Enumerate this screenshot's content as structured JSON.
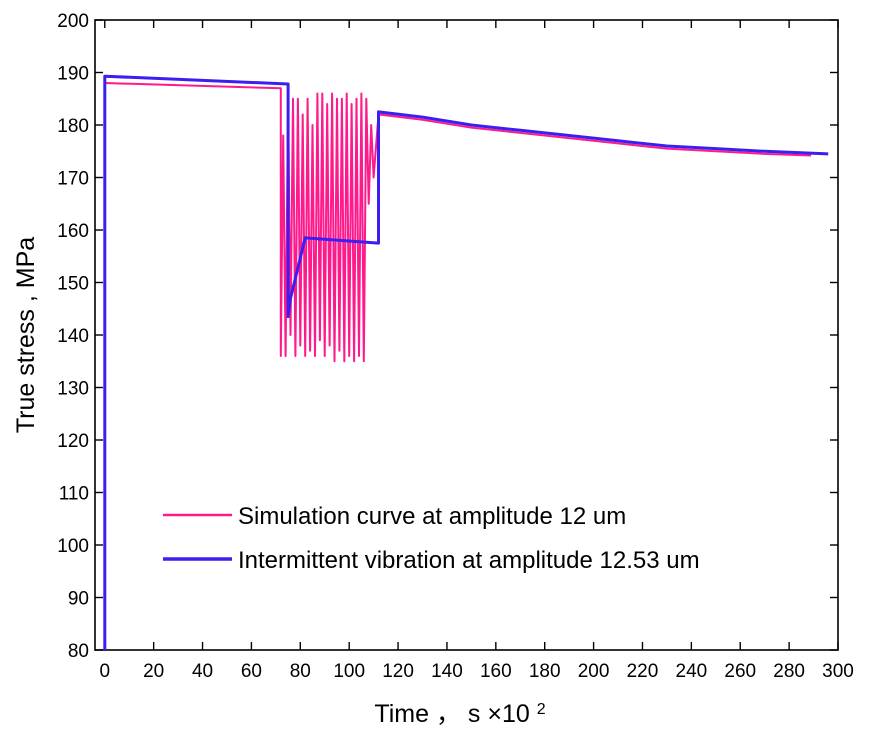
{
  "chart_data": {
    "type": "line",
    "xlabel": "Time",
    "xlabel_sep": "，",
    "xlabel_unit": "s ×10",
    "xlabel_exp": "2",
    "ylabel": "True stress , MPa",
    "xlim": [
      -4,
      300
    ],
    "ylim": [
      80,
      200
    ],
    "x_ticks": [
      0,
      20,
      40,
      60,
      80,
      100,
      120,
      140,
      160,
      180,
      200,
      220,
      240,
      260,
      280,
      300
    ],
    "y_ticks": [
      80,
      90,
      100,
      110,
      120,
      130,
      140,
      150,
      160,
      170,
      180,
      190,
      200
    ],
    "grid": false,
    "legend_position": "lower-center",
    "series": [
      {
        "name": "Simulation curve at amplitude 12 um",
        "color": "#ff1a8c",
        "points": [
          [
            0,
            80
          ],
          [
            0,
            188
          ],
          [
            72,
            187
          ],
          [
            72,
            136
          ],
          [
            73,
            178
          ],
          [
            74,
            136
          ],
          [
            75,
            185
          ],
          [
            76,
            140
          ],
          [
            77,
            185
          ],
          [
            78,
            136
          ],
          [
            79,
            185
          ],
          [
            80,
            138
          ],
          [
            81,
            182
          ],
          [
            82,
            136
          ],
          [
            83,
            185
          ],
          [
            84,
            137
          ],
          [
            85,
            180
          ],
          [
            86,
            136
          ],
          [
            87,
            186
          ],
          [
            88,
            139
          ],
          [
            89,
            186
          ],
          [
            90,
            136
          ],
          [
            91,
            184
          ],
          [
            92,
            138
          ],
          [
            93,
            186
          ],
          [
            94,
            135
          ],
          [
            95,
            185
          ],
          [
            96,
            137
          ],
          [
            97,
            185
          ],
          [
            98,
            135
          ],
          [
            99,
            186
          ],
          [
            100,
            136
          ],
          [
            101,
            184
          ],
          [
            102,
            135
          ],
          [
            103,
            185
          ],
          [
            104,
            136
          ],
          [
            105,
            186
          ],
          [
            106,
            135
          ],
          [
            107,
            185
          ],
          [
            108,
            165
          ],
          [
            109,
            180
          ],
          [
            110,
            170
          ],
          [
            112,
            182
          ],
          [
            130,
            181
          ],
          [
            150,
            179.5
          ],
          [
            170,
            178.5
          ],
          [
            190,
            177.5
          ],
          [
            210,
            176.5
          ],
          [
            230,
            175.5
          ],
          [
            250,
            175
          ],
          [
            270,
            174.5
          ],
          [
            289,
            174.2
          ]
        ]
      },
      {
        "name": "Intermittent vibration at amplitude 12.53 um",
        "color": "#3b1ff0",
        "points": [
          [
            0,
            80
          ],
          [
            0,
            189.3
          ],
          [
            75,
            187.8
          ],
          [
            75,
            143.5
          ],
          [
            76,
            147
          ],
          [
            82,
            158.5
          ],
          [
            112,
            157.5
          ],
          [
            112,
            182.5
          ],
          [
            130,
            181.5
          ],
          [
            150,
            180
          ],
          [
            170,
            179
          ],
          [
            190,
            178
          ],
          [
            210,
            177
          ],
          [
            230,
            176
          ],
          [
            250,
            175.5
          ],
          [
            270,
            175
          ],
          [
            296,
            174.5
          ]
        ]
      }
    ]
  }
}
